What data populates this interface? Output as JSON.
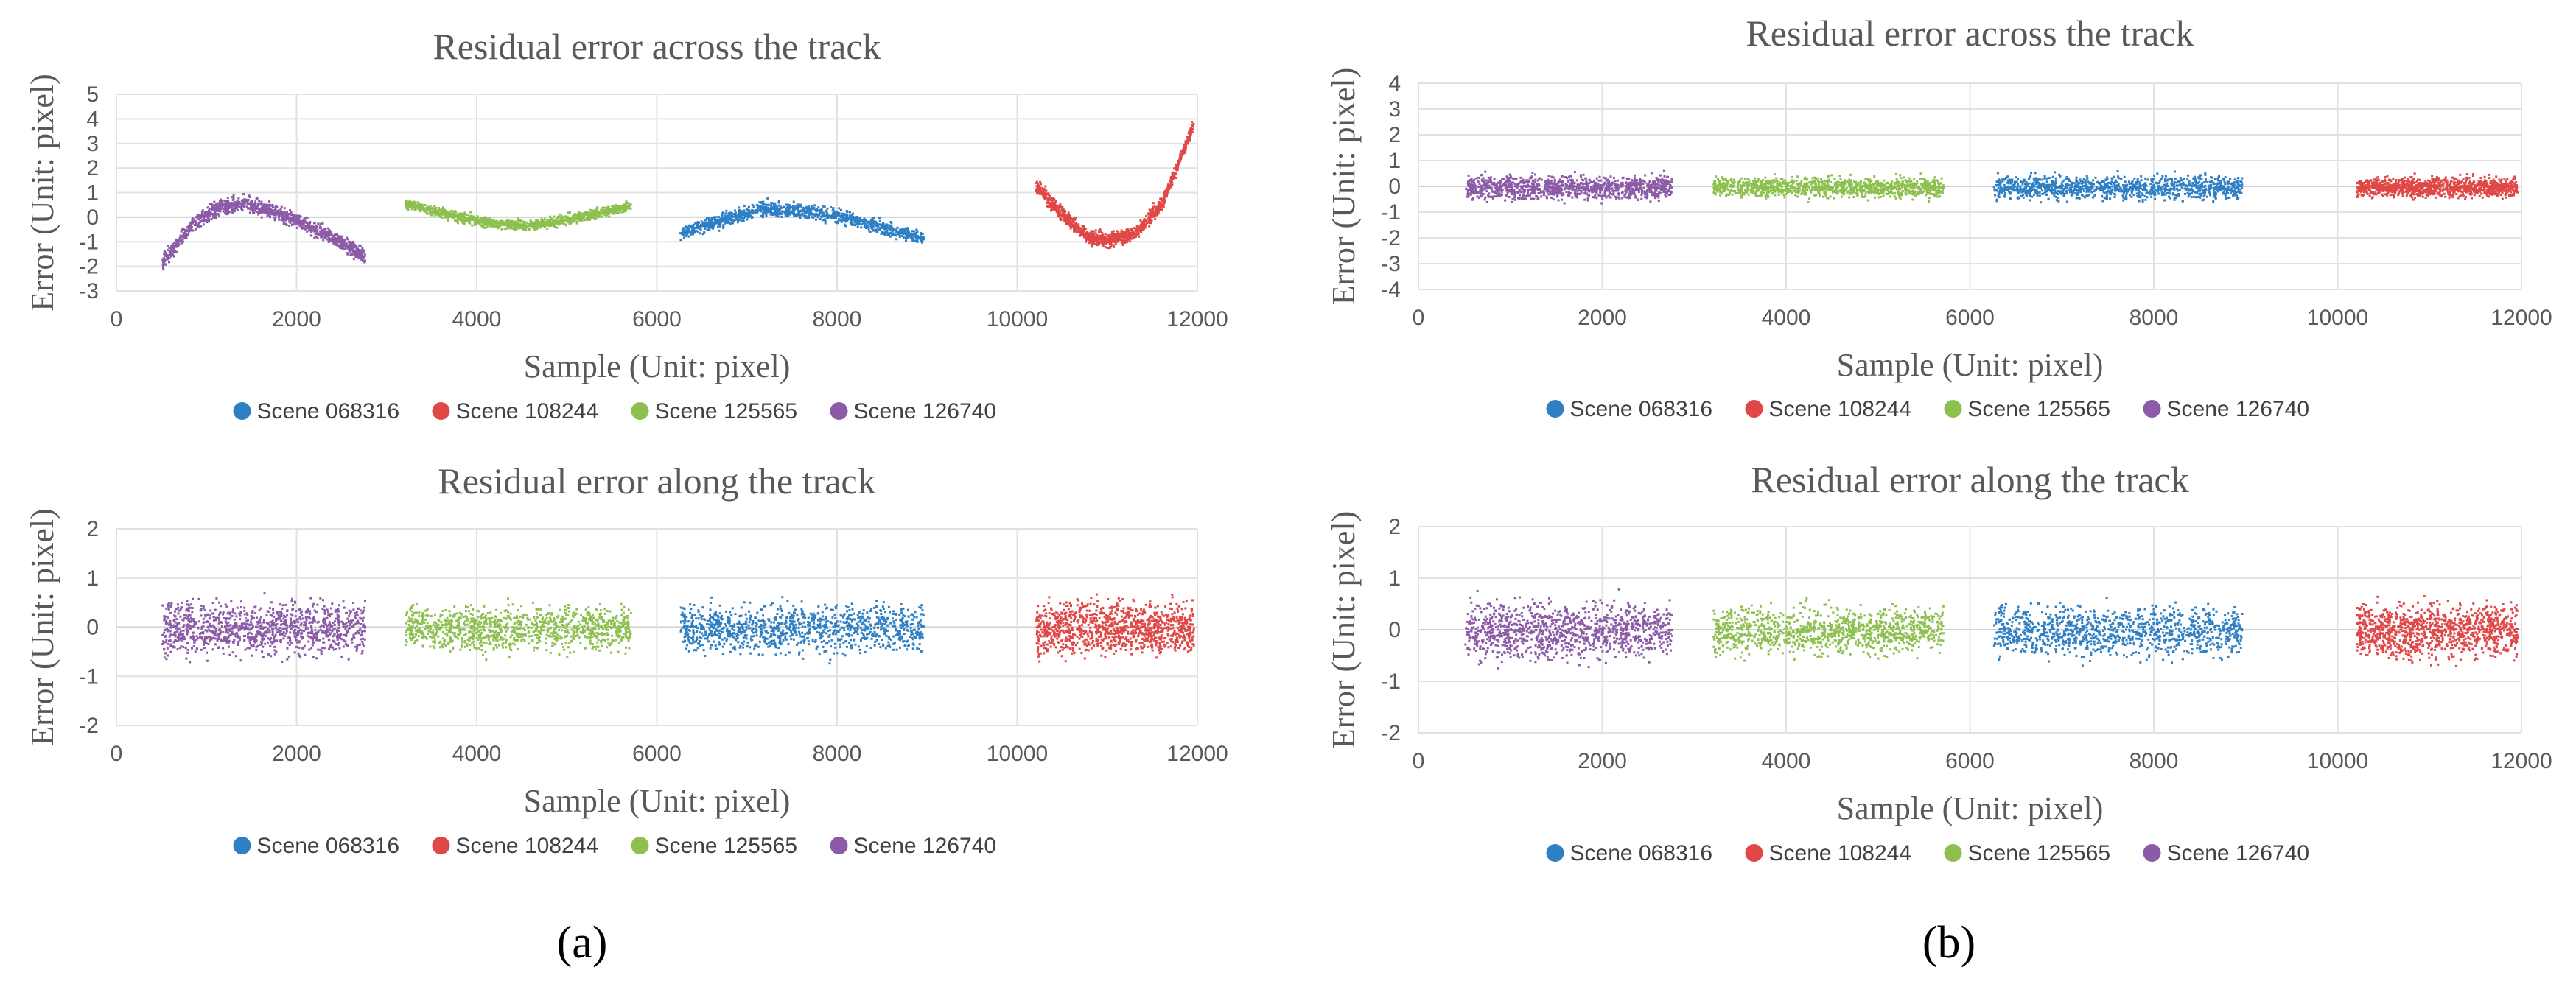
{
  "series_colors": {
    "Scene 068316": "#2e7fc4",
    "Scene 108244": "#e04848",
    "Scene 125565": "#8dc04e",
    "Scene 126740": "#8c5ba7"
  },
  "panel_labels": {
    "a": "(a)",
    "b": "(b)"
  },
  "chart_data": [
    {
      "id": "a-across",
      "type": "scatter",
      "panel": "a",
      "title": "Residual error across the track",
      "xlabel": "Sample (Unit: pixel)",
      "ylabel": "Error (Unit: pixel)",
      "xlim": [
        0,
        12000
      ],
      "ylim": [
        -3,
        5
      ],
      "xticks": [
        0,
        2000,
        4000,
        6000,
        8000,
        10000,
        12000
      ],
      "yticks": [
        -3,
        -2,
        -1,
        0,
        1,
        2,
        3,
        4,
        5
      ],
      "grid": true,
      "legend": [
        "Scene 068316",
        "Scene 108244",
        "Scene 125565",
        "Scene 126740"
      ],
      "legend_position": "bottom",
      "series": [
        {
          "name": "Scene 126740",
          "x_range": [
            500,
            2750
          ],
          "points": [
            [
              500,
              -1.8
            ],
            [
              800,
              -0.4
            ],
            [
              1100,
              0.4
            ],
            [
              1400,
              0.6
            ],
            [
              1700,
              0.3
            ],
            [
              2000,
              -0.1
            ],
            [
              2300,
              -0.6
            ],
            [
              2600,
              -1.2
            ],
            [
              2750,
              -1.6
            ]
          ],
          "spread": 0.55
        },
        {
          "name": "Scene 125565",
          "x_range": [
            3200,
            5700
          ],
          "points": [
            [
              3200,
              0.6
            ],
            [
              3600,
              0.2
            ],
            [
              4000,
              -0.1
            ],
            [
              4400,
              -0.3
            ],
            [
              4800,
              -0.2
            ],
            [
              5200,
              0.1
            ],
            [
              5700,
              0.5
            ]
          ],
          "spread": 0.35
        },
        {
          "name": "Scene 068316",
          "x_range": [
            6250,
            8950
          ],
          "points": [
            [
              6250,
              -0.6
            ],
            [
              6700,
              -0.1
            ],
            [
              7200,
              0.4
            ],
            [
              7600,
              0.3
            ],
            [
              8000,
              0.1
            ],
            [
              8500,
              -0.4
            ],
            [
              8950,
              -0.8
            ]
          ],
          "spread": 0.5
        },
        {
          "name": "Scene 108244",
          "x_range": [
            10200,
            11950
          ],
          "points": [
            [
              10200,
              1.3
            ],
            [
              10500,
              0.1
            ],
            [
              10800,
              -0.8
            ],
            [
              11000,
              -0.9
            ],
            [
              11300,
              -0.6
            ],
            [
              11600,
              0.6
            ],
            [
              11950,
              3.8
            ]
          ],
          "spread": 0.5
        }
      ]
    },
    {
      "id": "a-along",
      "type": "scatter",
      "panel": "a",
      "title": "Residual error along the track",
      "xlabel": "Sample (Unit: pixel)",
      "ylabel": "Error (Unit: pixel)",
      "xlim": [
        0,
        12000
      ],
      "ylim": [
        -2,
        2
      ],
      "xticks": [
        0,
        2000,
        4000,
        6000,
        8000,
        10000,
        12000
      ],
      "yticks": [
        -2,
        -1,
        0,
        1,
        2
      ],
      "grid": true,
      "legend": [
        "Scene 068316",
        "Scene 108244",
        "Scene 125565",
        "Scene 126740"
      ],
      "legend_position": "bottom",
      "series": [
        {
          "name": "Scene 126740",
          "x_range": [
            500,
            2750
          ],
          "points": [
            [
              500,
              0
            ],
            [
              2750,
              0
            ]
          ],
          "spread": 0.95
        },
        {
          "name": "Scene 125565",
          "x_range": [
            3200,
            5700
          ],
          "points": [
            [
              3200,
              0
            ],
            [
              5700,
              0
            ]
          ],
          "spread": 0.8
        },
        {
          "name": "Scene 068316",
          "x_range": [
            6250,
            8950
          ],
          "points": [
            [
              6250,
              0
            ],
            [
              8950,
              0
            ]
          ],
          "spread": 0.85
        },
        {
          "name": "Scene 108244",
          "x_range": [
            10200,
            11950
          ],
          "points": [
            [
              10200,
              0
            ],
            [
              11950,
              0
            ]
          ],
          "spread": 0.9
        }
      ]
    },
    {
      "id": "b-across",
      "type": "scatter",
      "panel": "b",
      "title": "Residual error across the track",
      "xlabel": "Sample (Unit: pixel)",
      "ylabel": "Error (Unit: pixel)",
      "xlim": [
        0,
        12000
      ],
      "ylim": [
        -4,
        4
      ],
      "xticks": [
        0,
        2000,
        4000,
        6000,
        8000,
        10000,
        12000
      ],
      "yticks": [
        -4,
        -3,
        -2,
        -1,
        0,
        1,
        2,
        3,
        4
      ],
      "grid": true,
      "legend": [
        "Scene 068316",
        "Scene 108244",
        "Scene 125565",
        "Scene 126740"
      ],
      "legend_position": "bottom",
      "series": [
        {
          "name": "Scene 126740",
          "x_range": [
            500,
            2750
          ],
          "points": [
            [
              500,
              0
            ],
            [
              2750,
              0
            ]
          ],
          "spread": 0.8
        },
        {
          "name": "Scene 125565",
          "x_range": [
            3200,
            5700
          ],
          "points": [
            [
              3200,
              0
            ],
            [
              5700,
              0
            ]
          ],
          "spread": 0.65
        },
        {
          "name": "Scene 068316",
          "x_range": [
            6250,
            8950
          ],
          "points": [
            [
              6250,
              0
            ],
            [
              8950,
              0
            ]
          ],
          "spread": 0.8
        },
        {
          "name": "Scene 108244",
          "x_range": [
            10200,
            11950
          ],
          "points": [
            [
              10200,
              0
            ],
            [
              11950,
              0
            ]
          ],
          "spread": 0.65
        }
      ]
    },
    {
      "id": "b-along",
      "type": "scatter",
      "panel": "b",
      "title": "Residual error along the track",
      "xlabel": "Sample (Unit: pixel)",
      "ylabel": "Error (Unit: pixel)",
      "xlim": [
        0,
        12000
      ],
      "ylim": [
        -2,
        2
      ],
      "xticks": [
        0,
        2000,
        4000,
        6000,
        8000,
        10000,
        12000
      ],
      "yticks": [
        -2,
        -1,
        0,
        1,
        2
      ],
      "grid": true,
      "legend": [
        "Scene 068316",
        "Scene 108244",
        "Scene 125565",
        "Scene 126740"
      ],
      "legend_position": "bottom",
      "series": [
        {
          "name": "Scene 126740",
          "x_range": [
            500,
            2750
          ],
          "points": [
            [
              500,
              0
            ],
            [
              2750,
              0
            ]
          ],
          "spread": 0.95
        },
        {
          "name": "Scene 125565",
          "x_range": [
            3200,
            5700
          ],
          "points": [
            [
              3200,
              0
            ],
            [
              5700,
              0
            ]
          ],
          "spread": 0.8
        },
        {
          "name": "Scene 068316",
          "x_range": [
            6250,
            8950
          ],
          "points": [
            [
              6250,
              0
            ],
            [
              8950,
              0
            ]
          ],
          "spread": 0.85
        },
        {
          "name": "Scene 108244",
          "x_range": [
            10200,
            11950
          ],
          "points": [
            [
              10200,
              0
            ],
            [
              11950,
              0
            ]
          ],
          "spread": 0.9
        }
      ]
    }
  ]
}
